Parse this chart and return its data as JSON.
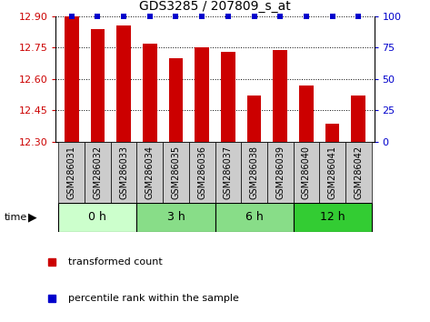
{
  "title": "GDS3285 / 207809_s_at",
  "samples": [
    "GSM286031",
    "GSM286032",
    "GSM286033",
    "GSM286034",
    "GSM286035",
    "GSM286036",
    "GSM286037",
    "GSM286038",
    "GSM286039",
    "GSM286040",
    "GSM286041",
    "GSM286042"
  ],
  "values": [
    12.9,
    12.84,
    12.855,
    12.77,
    12.7,
    12.75,
    12.73,
    12.52,
    12.74,
    12.57,
    12.385,
    12.52
  ],
  "percentiles": [
    100,
    100,
    100,
    100,
    100,
    100,
    100,
    100,
    100,
    100,
    100,
    100
  ],
  "bar_color": "#cc0000",
  "dot_color": "#0000cc",
  "ylim_left": [
    12.3,
    12.9
  ],
  "ylim_right": [
    0,
    100
  ],
  "yticks_left": [
    12.3,
    12.45,
    12.6,
    12.75,
    12.9
  ],
  "yticks_right": [
    0,
    25,
    50,
    75,
    100
  ],
  "time_groups": [
    {
      "label": "0 h",
      "start": 0,
      "end": 3,
      "color": "#ccffcc"
    },
    {
      "label": "3 h",
      "start": 3,
      "end": 6,
      "color": "#88dd88"
    },
    {
      "label": "6 h",
      "start": 6,
      "end": 9,
      "color": "#88dd88"
    },
    {
      "label": "12 h",
      "start": 9,
      "end": 12,
      "color": "#33cc33"
    }
  ],
  "legend_items": [
    {
      "label": "transformed count",
      "color": "#cc0000"
    },
    {
      "label": "percentile rank within the sample",
      "color": "#0000cc"
    }
  ],
  "background_color": "#ffffff",
  "sample_bg_color": "#cccccc",
  "bar_width": 0.55
}
